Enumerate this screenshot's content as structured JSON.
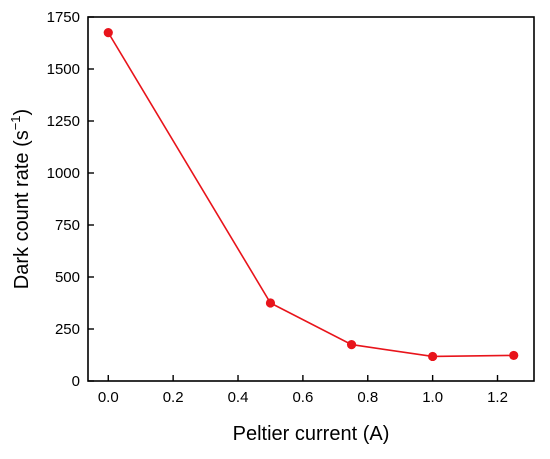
{
  "chart_data": {
    "type": "line",
    "title": "",
    "xlabel": "Peltier current (A)",
    "ylabel_main": "Dark count rate (s",
    "ylabel_sup": "−1",
    "ylabel_close": ")",
    "x": [
      0.0,
      0.5,
      0.75,
      1.0,
      1.25
    ],
    "series": [
      {
        "values": [
          1675,
          375,
          175,
          118,
          123
        ],
        "color": "#e8141b",
        "marker": "circle"
      }
    ],
    "xlim": [
      -0.0625,
      1.3125
    ],
    "ylim": [
      0,
      1750
    ],
    "xticks": [
      "0.0",
      "0.2",
      "0.4",
      "0.6",
      "0.8",
      "1.0",
      "1.2"
    ],
    "yticks": [
      "0",
      "250",
      "500",
      "750",
      "1000",
      "1250",
      "1500",
      "1750"
    ],
    "grid": false,
    "legend": "none"
  }
}
